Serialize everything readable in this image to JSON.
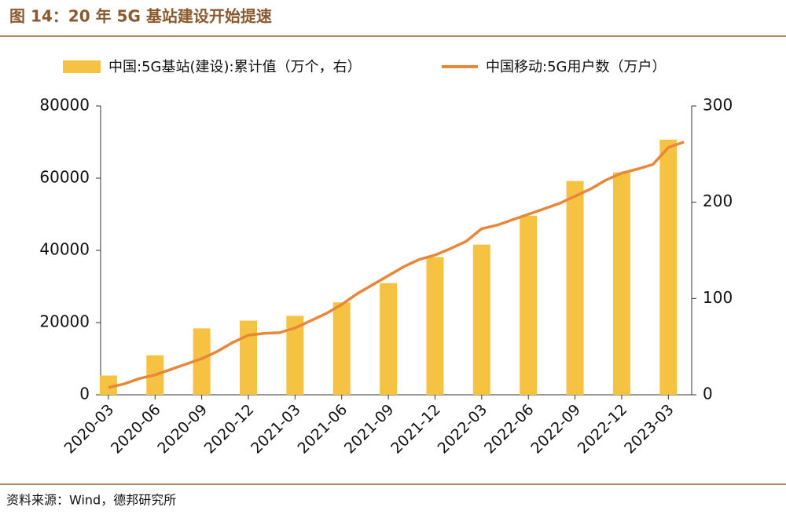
{
  "chart_data": {
    "type": "bar_line",
    "title": "图 14：20 年 5G 基站建设开始提速",
    "source": "资料来源：Wind，德邦研究所",
    "categories": [
      "2020-03",
      null,
      null,
      "2020-06",
      null,
      null,
      "2020-09",
      null,
      null,
      "2020-12",
      null,
      null,
      "2021-03",
      null,
      null,
      "2021-06",
      null,
      null,
      "2021-09",
      null,
      null,
      "2021-12",
      null,
      null,
      "2022-03",
      null,
      null,
      "2022-06",
      null,
      null,
      "2022-09",
      null,
      null,
      "2022-12",
      null,
      null,
      "2023-03",
      null
    ],
    "series": [
      {
        "name": "中国:5G基站(建设):累计值（万个，右）",
        "type": "bar",
        "axis": "y2",
        "color": "#f5c242",
        "values": [
          20,
          null,
          null,
          41,
          null,
          null,
          69,
          null,
          null,
          77,
          null,
          null,
          82,
          null,
          null,
          96,
          null,
          null,
          116,
          null,
          null,
          143,
          null,
          null,
          156,
          null,
          null,
          186,
          null,
          null,
          222,
          null,
          null,
          231,
          null,
          null,
          265,
          null
        ]
      },
      {
        "name": "中国移动:5G用户数（万户）",
        "type": "line",
        "color": "#e8873a",
        "values": [
          2000,
          3000,
          4500,
          5500,
          7000,
          8500,
          10000,
          12000,
          14500,
          16500,
          17000,
          17200,
          18500,
          20500,
          22500,
          25000,
          28000,
          30500,
          33000,
          35500,
          37500,
          38700,
          40500,
          42500,
          46000,
          47000,
          48500,
          50000,
          51500,
          53000,
          55000,
          57000,
          59500,
          61400,
          62500,
          63800,
          68500,
          70000
        ]
      }
    ],
    "ylim": [
      0,
      80000
    ],
    "yticks": [
      0,
      20000,
      40000,
      60000,
      80000
    ],
    "y2lim": [
      0,
      300
    ],
    "y2ticks": [
      0,
      100,
      200,
      300
    ]
  }
}
